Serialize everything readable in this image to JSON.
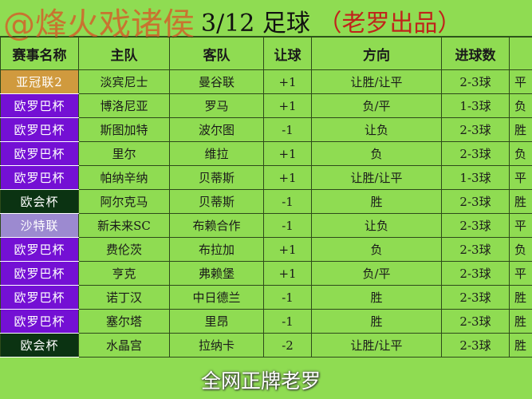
{
  "title": {
    "date_sport": "3/12 足球",
    "author": "（老罗出品）"
  },
  "watermark": "@烽火戏诸侯",
  "subtitle_overlay": "全网正牌老罗",
  "colors": {
    "background_green": "#8fdc52",
    "europa_purple": "#7410d4",
    "afc_gold": "#d09a3e",
    "conference_dark_green": "#0b3312",
    "saudi_lavender": "#9c8ad0"
  },
  "headers": [
    "赛事名称",
    "主队",
    "客队",
    "让球",
    "方向",
    "进球数",
    ""
  ],
  "rows": [
    {
      "league": "亚冠联2",
      "color": "#d09a3e",
      "home": "淡宾尼士",
      "away": "曼谷联",
      "handicap": "+1",
      "direction": "让胜/让平",
      "goals": "2-3球",
      "extra": "平"
    },
    {
      "league": "欧罗巴杯",
      "color": "#7410d4",
      "home": "博洛尼亚",
      "away": "罗马",
      "handicap": "+1",
      "direction": "负/平",
      "goals": "1-3球",
      "extra": "负"
    },
    {
      "league": "欧罗巴杯",
      "color": "#7410d4",
      "home": "斯图加特",
      "away": "波尔图",
      "handicap": "-1",
      "direction": "让负",
      "goals": "2-3球",
      "extra": "胜"
    },
    {
      "league": "欧罗巴杯",
      "color": "#7410d4",
      "home": "里尔",
      "away": "维拉",
      "handicap": "+1",
      "direction": "负",
      "goals": "2-3球",
      "extra": "负"
    },
    {
      "league": "欧罗巴杯",
      "color": "#7410d4",
      "home": "帕纳辛纳",
      "away": "贝蒂斯",
      "handicap": "+1",
      "direction": "让胜/让平",
      "goals": "1-3球",
      "extra": "平"
    },
    {
      "league": "欧会杯",
      "color": "#0b3312",
      "home": "阿尔克马",
      "away": "贝蒂斯",
      "handicap": "-1",
      "direction": "胜",
      "goals": "2-3球",
      "extra": "胜"
    },
    {
      "league": "沙特联",
      "color": "#9c8ad0",
      "home": "新未来SC",
      "away": "布赖合作",
      "handicap": "-1",
      "direction": "让负",
      "goals": "2-3球",
      "extra": "平"
    },
    {
      "league": "欧罗巴杯",
      "color": "#7410d4",
      "home": "费伦茨",
      "away": "布拉加",
      "handicap": "+1",
      "direction": "负",
      "goals": "2-3球",
      "extra": "负"
    },
    {
      "league": "欧罗巴杯",
      "color": "#7410d4",
      "home": "亨克",
      "away": "弗赖堡",
      "handicap": "+1",
      "direction": "负/平",
      "goals": "2-3球",
      "extra": "平"
    },
    {
      "league": "欧罗巴杯",
      "color": "#7410d4",
      "home": "诺丁汉",
      "away": "中日德兰",
      "handicap": "-1",
      "direction": "胜",
      "goals": "2-3球",
      "extra": "胜"
    },
    {
      "league": "欧罗巴杯",
      "color": "#7410d4",
      "home": "塞尔塔",
      "away": "里昂",
      "handicap": "-1",
      "direction": "胜",
      "goals": "2-3球",
      "extra": "胜"
    },
    {
      "league": "欧会杯",
      "color": "#0b3312",
      "home": "水晶宫",
      "away": "拉纳卡",
      "handicap": "-2",
      "direction": "让胜/让平",
      "goals": "2-3球",
      "extra": "胜"
    }
  ]
}
